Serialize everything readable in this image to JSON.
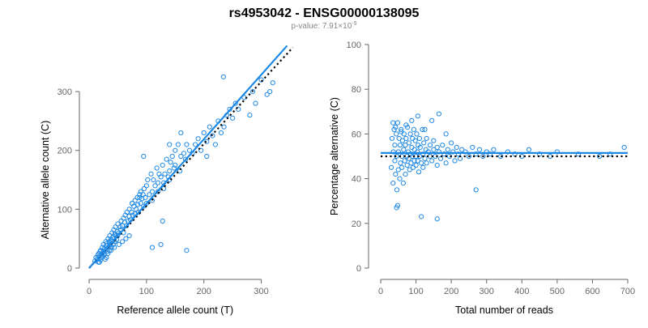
{
  "header": {
    "title": "rs4953042 - ENSG00000138095",
    "subtitle": "p-value: 7.91×10",
    "subtitle_exponent": "-9"
  },
  "colors": {
    "points": "#1f88e5",
    "fit_line": "#1e88e5",
    "reference_line": "#000000"
  },
  "chart_data": [
    {
      "type": "scatter",
      "title": "",
      "xlabel": "Reference allele count (T)",
      "ylabel": "Alternative allele count (C)",
      "xlim": [
        0,
        350
      ],
      "ylim": [
        0,
        380
      ],
      "xticks": [
        "0",
        "100",
        "200",
        "300"
      ],
      "yticks": [
        "0",
        "100",
        "200",
        "300"
      ],
      "grid": false,
      "fit_line": {
        "style": "solid",
        "x": [
          0,
          345
        ],
        "y": [
          0,
          378
        ]
      },
      "reference_line": {
        "style": "dotted",
        "x": [
          0,
          355
        ],
        "y": [
          0,
          375
        ]
      },
      "points": {
        "x": [
          10,
          12,
          14,
          15,
          16,
          17,
          18,
          19,
          20,
          20,
          21,
          22,
          23,
          24,
          25,
          25,
          26,
          27,
          28,
          29,
          30,
          30,
          31,
          32,
          33,
          34,
          35,
          35,
          36,
          37,
          38,
          39,
          40,
          40,
          41,
          42,
          43,
          44,
          45,
          45,
          46,
          47,
          48,
          49,
          50,
          50,
          52,
          54,
          55,
          56,
          58,
          60,
          60,
          62,
          63,
          65,
          66,
          68,
          70,
          70,
          72,
          74,
          75,
          76,
          78,
          80,
          80,
          82,
          84,
          85,
          86,
          88,
          90,
          90,
          92,
          94,
          95,
          96,
          98,
          100,
          100,
          102,
          105,
          108,
          110,
          110,
          112,
          115,
          118,
          120,
          120,
          122,
          125,
          128,
          130,
          130,
          132,
          135,
          138,
          140,
          140,
          142,
          145,
          148,
          150,
          150,
          155,
          158,
          160,
          160,
          165,
          168,
          170,
          175,
          180,
          185,
          190,
          195,
          200,
          205,
          210,
          215,
          220,
          225,
          230,
          235,
          240,
          245,
          250,
          255,
          260,
          270,
          280,
          285,
          290,
          300,
          310,
          315,
          320,
          110,
          95,
          125,
          140,
          170,
          75,
          88,
          128,
          205,
          234,
          18,
          22,
          28,
          33,
          38,
          44,
          52,
          58,
          64,
          70
        ],
        "y": [
          12,
          18,
          15,
          22,
          10,
          25,
          20,
          28,
          14,
          30,
          18,
          24,
          35,
          20,
          28,
          40,
          22,
          33,
          30,
          45,
          18,
          38,
          42,
          28,
          50,
          35,
          45,
          30,
          55,
          40,
          48,
          35,
          60,
          45,
          52,
          40,
          65,
          50,
          58,
          45,
          70,
          55,
          48,
          62,
          75,
          55,
          60,
          70,
          65,
          80,
          72,
          85,
          60,
          78,
          90,
          72,
          95,
          80,
          88,
          100,
          82,
          95,
          110,
          90,
          105,
          92,
          115,
          100,
          120,
          108,
          95,
          125,
          110,
          130,
          118,
          125,
          105,
          135,
          120,
          140,
          110,
          150,
          125,
          160,
          130,
          115,
          150,
          140,
          170,
          130,
          145,
          160,
          155,
          175,
          145,
          135,
          160,
          185,
          155,
          165,
          150,
          180,
          190,
          170,
          175,
          200,
          210,
          165,
          190,
          230,
          195,
          185,
          210,
          200,
          195,
          210,
          220,
          200,
          230,
          215,
          240,
          225,
          210,
          250,
          230,
          240,
          260,
          270,
          255,
          280,
          270,
          290,
          260,
          300,
          280,
          320,
          295,
          300,
          315,
          35,
          190,
          40,
          210,
          30,
          110,
          120,
          80,
          190,
          325,
          10,
          20,
          15,
          25,
          30,
          35,
          40,
          45,
          50,
          55
        ]
      }
    },
    {
      "type": "scatter",
      "title": "",
      "xlabel": "Total number of reads",
      "ylabel": "Percentage alternative (C)",
      "xlim": [
        0,
        700
      ],
      "ylim": [
        0,
        100
      ],
      "xticks": [
        "0",
        "100",
        "200",
        "300",
        "400",
        "500",
        "600",
        "700"
      ],
      "yticks": [
        "0",
        "20",
        "40",
        "60",
        "80",
        "100"
      ],
      "grid": false,
      "fit_line": {
        "style": "solid",
        "x": [
          0,
          700
        ],
        "y": [
          51.5,
          51.5
        ]
      },
      "reference_line": {
        "style": "dotted",
        "x": [
          0,
          700
        ],
        "y": [
          50,
          50
        ]
      },
      "points": {
        "x": [
          30,
          32,
          35,
          36,
          38,
          40,
          40,
          42,
          44,
          45,
          46,
          48,
          50,
          50,
          52,
          54,
          55,
          56,
          58,
          60,
          60,
          62,
          64,
          65,
          66,
          68,
          70,
          70,
          72,
          74,
          75,
          76,
          78,
          80,
          80,
          82,
          84,
          85,
          86,
          88,
          90,
          90,
          92,
          94,
          95,
          96,
          98,
          100,
          100,
          102,
          104,
          105,
          106,
          108,
          110,
          110,
          112,
          115,
          118,
          120,
          120,
          122,
          125,
          128,
          130,
          130,
          135,
          140,
          140,
          145,
          150,
          150,
          155,
          160,
          160,
          165,
          170,
          175,
          180,
          185,
          190,
          195,
          200,
          205,
          210,
          215,
          220,
          225,
          230,
          240,
          250,
          260,
          270,
          280,
          290,
          300,
          310,
          320,
          340,
          360,
          380,
          400,
          420,
          450,
          480,
          500,
          560,
          620,
          650,
          690,
          45,
          48,
          115,
          160,
          270,
          35,
          42,
          58,
          72,
          88,
          105,
          125,
          145,
          165,
          185
        ],
        "y": [
          45,
          58,
          38,
          52,
          62,
          48,
          55,
          42,
          60,
          50,
          35,
          65,
          52,
          44,
          58,
          40,
          55,
          47,
          62,
          50,
          45,
          57,
          38,
          53,
          60,
          48,
          55,
          42,
          58,
          50,
          46,
          63,
          52,
          49,
          56,
          44,
          60,
          51,
          47,
          54,
          58,
          50,
          45,
          62,
          48,
          53,
          57,
          50,
          46,
          60,
          52,
          48,
          55,
          43,
          58,
          50,
          54,
          47,
          62,
          51,
          45,
          56,
          49,
          53,
          58,
          47,
          52,
          55,
          50,
          48,
          53,
          57,
          50,
          46,
          54,
          52,
          49,
          55,
          51,
          47,
          53,
          50,
          56,
          52,
          48,
          54,
          51,
          49,
          53,
          52,
          50,
          54,
          51,
          53,
          50,
          52,
          51,
          53,
          50,
          52,
          51,
          50,
          53,
          51,
          50,
          52,
          51,
          50,
          51,
          54,
          27,
          28,
          23,
          22,
          35,
          65,
          63,
          61,
          64,
          66,
          68,
          62,
          66,
          69,
          60
        ]
      }
    }
  ]
}
